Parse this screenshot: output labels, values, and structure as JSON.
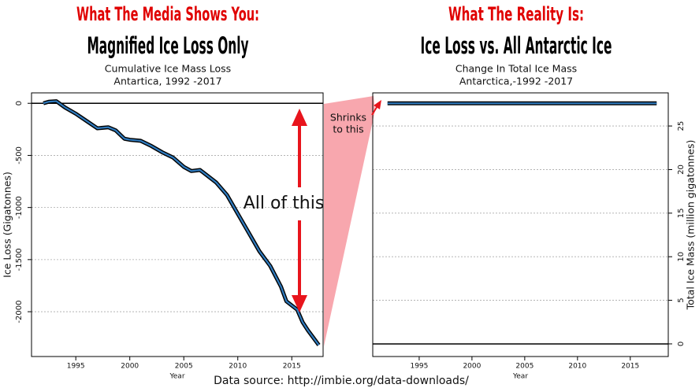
{
  "chart_data": [
    {
      "type": "line",
      "kicker": "What The Media Shows You:",
      "title": "Magnified Ice Loss Only",
      "subtitle": [
        "Cumulative Ice Mass Loss",
        "Antartica, 1992 -2017"
      ],
      "x_label": "Year",
      "y_label": "Ice Loss (Gigatonnes)",
      "annotations": [
        "All of this"
      ],
      "x": [
        1992,
        1992.5,
        1993.2,
        1994,
        1995,
        1996,
        1997,
        1998,
        1998.7,
        1999.5,
        2000,
        2001,
        2002,
        2003,
        2004,
        2005,
        2005.7,
        2006.5,
        2007,
        2008,
        2009,
        2010,
        2011,
        2012,
        2013,
        2014,
        2014.5,
        2015.5,
        2016,
        2016.5,
        2017,
        2017.5
      ],
      "series": [
        {
          "color": "#2f7bbf",
          "values": [
            0,
            15,
            20,
            -40,
            -100,
            -170,
            -240,
            -230,
            -260,
            -340,
            -350,
            -360,
            -410,
            -470,
            -520,
            -610,
            -650,
            -640,
            -680,
            -760,
            -880,
            -1060,
            -1240,
            -1420,
            -1560,
            -1760,
            -1900,
            -1980,
            -2100,
            -2180,
            -2250,
            -2320
          ]
        }
      ],
      "hline": 0,
      "xlim": [
        1990.9,
        2017.9
      ],
      "xticks": [
        1995,
        2000,
        2005,
        2010,
        2015
      ],
      "ylim": [
        -2430,
        100
      ],
      "yticks": [
        0,
        -500,
        -1000,
        -1500,
        -2000
      ],
      "grid": true,
      "axis_side": "left"
    },
    {
      "type": "line",
      "kicker": "What The Reality Is:",
      "title": "Ice Loss vs. All Antarctic Ice",
      "subtitle": [
        "Change In Total Ice Mass",
        "Antarctica,-1992 -2017"
      ],
      "x_label": "Year",
      "y_label": "Total Ice Mass (million gigatonnes)",
      "annotations": [
        "Shrinks",
        "to this"
      ],
      "x": [
        1992,
        2017.5
      ],
      "series": [
        {
          "color": "#2f7bbf",
          "values": [
            27.6,
            27.598
          ]
        }
      ],
      "hline": 0,
      "xlim": [
        1990.6,
        2018.6
      ],
      "xticks": [
        1995,
        2000,
        2005,
        2010,
        2015
      ],
      "ylim": [
        -1.45,
        28.8
      ],
      "yticks": [
        0,
        5,
        10,
        15,
        20,
        25
      ],
      "grid": true,
      "axis_side": "right"
    }
  ],
  "source": "Data source: http://imbie.org/data-downloads/"
}
